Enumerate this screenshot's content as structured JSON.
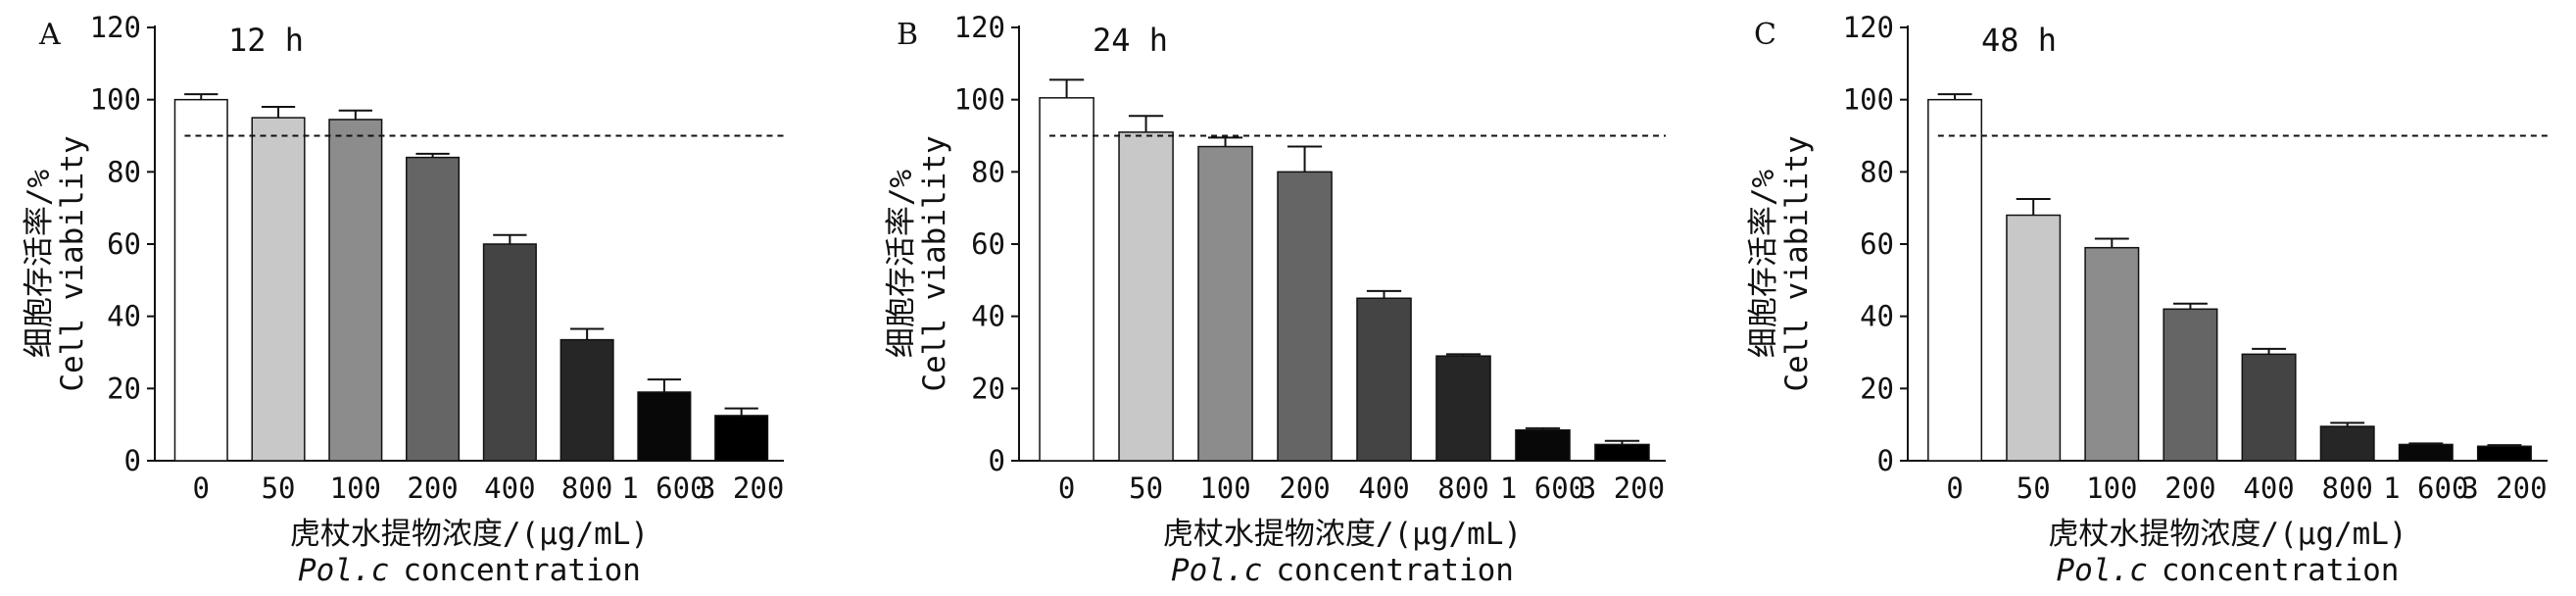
{
  "colors": [
    "#ffffff",
    "#c8c8c8",
    "#8c8c8c",
    "#656565",
    "#444444",
    "#262626",
    "#080808",
    "#000000"
  ],
  "chart_data": [
    {
      "type": "bar",
      "panel_letter": "A",
      "title": "12 h",
      "categories": [
        "0",
        "50",
        "100",
        "200",
        "400",
        "800",
        "1 600",
        "3 200"
      ],
      "values": [
        100,
        95,
        94.5,
        84,
        60,
        33.5,
        19,
        12.5
      ],
      "errors": [
        1.5,
        3,
        2.5,
        1,
        2.5,
        3,
        3.5,
        2
      ],
      "ylim": [
        0,
        120
      ],
      "yticks": [
        0,
        20,
        40,
        60,
        80,
        100,
        120
      ],
      "ylabel_cn": "细胞存活率/%",
      "ylabel_en": "Cell viability",
      "xlabel_cn": "虎杖水提物浓度/(μg/mL)",
      "xlabel_en_italic": "Pol.c",
      "xlabel_en": "concentration",
      "reference_line": 90
    },
    {
      "type": "bar",
      "panel_letter": "B",
      "title": "24 h",
      "categories": [
        "0",
        "50",
        "100",
        "200",
        "400",
        "800",
        "1 600",
        "3 200"
      ],
      "values": [
        100.5,
        91,
        87,
        80,
        45,
        29,
        8.5,
        4.5
      ],
      "errors": [
        5,
        4.5,
        2.5,
        7,
        2,
        0.5,
        0.5,
        1
      ],
      "ylim": [
        0,
        120
      ],
      "yticks": [
        0,
        20,
        40,
        60,
        80,
        100,
        120
      ],
      "ylabel_cn": "细胞存活率/%",
      "ylabel_en": "Cell viability",
      "xlabel_cn": "虎杖水提物浓度/(μg/mL)",
      "xlabel_en_italic": "Pol.c",
      "xlabel_en": "concentration",
      "reference_line": 90
    },
    {
      "type": "bar",
      "panel_letter": "C",
      "title": "48 h",
      "categories": [
        "0",
        "50",
        "100",
        "200",
        "400",
        "800",
        "1 600",
        "3 200"
      ],
      "values": [
        100,
        68,
        59,
        42,
        29.5,
        9.5,
        4.5,
        4
      ],
      "errors": [
        1.5,
        4.5,
        2.5,
        1.5,
        1.5,
        1,
        0.3,
        0.3
      ],
      "ylim": [
        0,
        120
      ],
      "yticks": [
        0,
        20,
        40,
        60,
        80,
        100,
        120
      ],
      "ylabel_cn": "细胞存活率/%",
      "ylabel_en": "Cell viability",
      "xlabel_cn": "虎杖水提物浓度/(μg/mL)",
      "xlabel_en_italic": "Pol.c",
      "xlabel_en": "concentration",
      "reference_line": 90
    }
  ]
}
